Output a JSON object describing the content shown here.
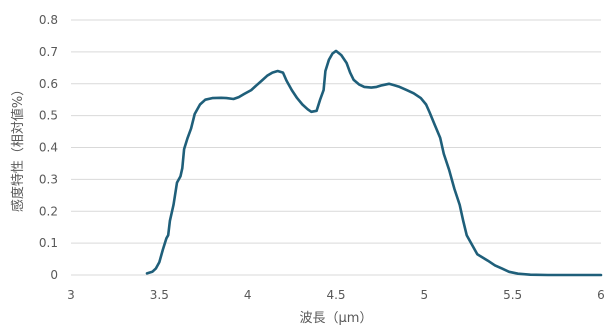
{
  "chart_data": {
    "type": "line",
    "title": "",
    "xlabel": "波長（μm）",
    "ylabel": "感度特性（相対値%）",
    "xlim": [
      3,
      6
    ],
    "ylim": [
      0,
      0.8
    ],
    "x_ticks": [
      "3",
      "3.5",
      "4",
      "4.5",
      "5",
      "5.5",
      "6"
    ],
    "y_ticks": [
      "0",
      "0.1",
      "0.2",
      "0.3",
      "0.4",
      "0.5",
      "0.6",
      "0.7",
      "0.8"
    ],
    "grid": "horizontal",
    "legend": "none",
    "series": [
      {
        "color": "#1f5f7a",
        "points": [
          [
            3.43,
            0.005
          ],
          [
            3.46,
            0.01
          ],
          [
            3.48,
            0.02
          ],
          [
            3.5,
            0.04
          ],
          [
            3.52,
            0.08
          ],
          [
            3.54,
            0.115
          ],
          [
            3.55,
            0.125
          ],
          [
            3.56,
            0.17
          ],
          [
            3.58,
            0.22
          ],
          [
            3.6,
            0.29
          ],
          [
            3.62,
            0.31
          ],
          [
            3.63,
            0.335
          ],
          [
            3.64,
            0.395
          ],
          [
            3.66,
            0.43
          ],
          [
            3.68,
            0.46
          ],
          [
            3.7,
            0.505
          ],
          [
            3.73,
            0.535
          ],
          [
            3.76,
            0.55
          ],
          [
            3.8,
            0.555
          ],
          [
            3.85,
            0.556
          ],
          [
            3.88,
            0.555
          ],
          [
            3.92,
            0.552
          ],
          [
            3.95,
            0.558
          ],
          [
            3.98,
            0.568
          ],
          [
            4.02,
            0.58
          ],
          [
            4.05,
            0.595
          ],
          [
            4.08,
            0.61
          ],
          [
            4.11,
            0.625
          ],
          [
            4.14,
            0.635
          ],
          [
            4.17,
            0.64
          ],
          [
            4.2,
            0.635
          ],
          [
            4.22,
            0.61
          ],
          [
            4.25,
            0.58
          ],
          [
            4.28,
            0.555
          ],
          [
            4.31,
            0.535
          ],
          [
            4.34,
            0.52
          ],
          [
            4.36,
            0.512
          ],
          [
            4.39,
            0.515
          ],
          [
            4.41,
            0.55
          ],
          [
            4.43,
            0.58
          ],
          [
            4.44,
            0.64
          ],
          [
            4.46,
            0.675
          ],
          [
            4.48,
            0.695
          ],
          [
            4.5,
            0.703
          ],
          [
            4.53,
            0.69
          ],
          [
            4.56,
            0.665
          ],
          [
            4.58,
            0.635
          ],
          [
            4.6,
            0.612
          ],
          [
            4.63,
            0.598
          ],
          [
            4.66,
            0.59
          ],
          [
            4.7,
            0.588
          ],
          [
            4.73,
            0.59
          ],
          [
            4.76,
            0.595
          ],
          [
            4.8,
            0.6
          ],
          [
            4.83,
            0.595
          ],
          [
            4.86,
            0.59
          ],
          [
            4.9,
            0.58
          ],
          [
            4.94,
            0.57
          ],
          [
            4.98,
            0.555
          ],
          [
            5.01,
            0.535
          ],
          [
            5.03,
            0.51
          ],
          [
            5.06,
            0.47
          ],
          [
            5.09,
            0.43
          ],
          [
            5.11,
            0.38
          ],
          [
            5.14,
            0.33
          ],
          [
            5.17,
            0.27
          ],
          [
            5.2,
            0.22
          ],
          [
            5.22,
            0.17
          ],
          [
            5.24,
            0.125
          ],
          [
            5.27,
            0.095
          ],
          [
            5.3,
            0.065
          ],
          [
            5.33,
            0.055
          ],
          [
            5.36,
            0.045
          ],
          [
            5.4,
            0.03
          ],
          [
            5.44,
            0.02
          ],
          [
            5.48,
            0.01
          ],
          [
            5.53,
            0.004
          ],
          [
            5.6,
            0.001
          ],
          [
            5.7,
            0.0
          ],
          [
            6.0,
            0.0
          ]
        ]
      }
    ]
  }
}
